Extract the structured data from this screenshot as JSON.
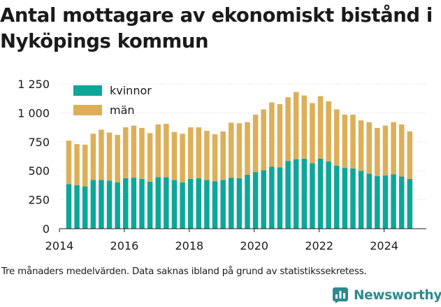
{
  "title": "Antal mottagare av ekonomiskt bistånd i Nyköpings kommun",
  "caption": "Tre månaders medelvärden. Data saknas ibland på grund av statistikssekretess.",
  "brand": {
    "name": "Newsworthy",
    "icon": "bar-chart-logo-icon",
    "color": "#2b8a8e"
  },
  "colors": {
    "kvinnor": "#0ca79a",
    "man": "#dcaf58",
    "axis": "#1a1a1a",
    "grid": "#d4d4d4"
  },
  "chart_data": {
    "type": "bar",
    "stacked": true,
    "title": "Antal mottagare av ekonomiskt bistånd i Nyköpings kommun",
    "xlabel": "",
    "ylabel": "",
    "ylim": [
      0,
      1250
    ],
    "yticks": [
      0,
      250,
      500,
      750,
      1000,
      1250
    ],
    "ytick_labels": [
      "0",
      "250",
      "500",
      "750",
      "1 000",
      "1 250"
    ],
    "xlim": [
      2014.0,
      2025.3
    ],
    "xticks": [
      2014,
      2016,
      2018,
      2020,
      2022,
      2024
    ],
    "xtick_labels": [
      "2014",
      "2016",
      "2018",
      "2020",
      "2022",
      "2024"
    ],
    "grid": true,
    "legend": "top-left",
    "x": [
      2014.29,
      2014.54,
      2014.79,
      2015.04,
      2015.29,
      2015.54,
      2015.79,
      2016.04,
      2016.29,
      2016.54,
      2016.79,
      2017.04,
      2017.29,
      2017.54,
      2017.79,
      2018.04,
      2018.29,
      2018.54,
      2018.79,
      2019.04,
      2019.29,
      2019.54,
      2019.79,
      2020.04,
      2020.29,
      2020.54,
      2020.79,
      2021.04,
      2021.29,
      2021.54,
      2021.79,
      2022.04,
      2022.29,
      2022.54,
      2022.79,
      2023.04,
      2023.29,
      2023.54,
      2023.79,
      2024.04,
      2024.29,
      2024.54,
      2024.79
    ],
    "series": [
      {
        "name": "kvinnor",
        "color": "#0ca79a",
        "values": [
          385,
          375,
          365,
          420,
          420,
          415,
          400,
          435,
          440,
          430,
          405,
          445,
          445,
          420,
          400,
          430,
          435,
          420,
          410,
          420,
          440,
          435,
          465,
          490,
          505,
          535,
          530,
          585,
          600,
          605,
          565,
          605,
          580,
          545,
          525,
          520,
          500,
          475,
          455,
          460,
          470,
          450,
          430
        ]
      },
      {
        "name": "män",
        "color": "#dcaf58",
        "values": [
          375,
          355,
          360,
          400,
          435,
          415,
          410,
          440,
          450,
          440,
          420,
          455,
          460,
          415,
          420,
          445,
          440,
          425,
          405,
          420,
          475,
          475,
          455,
          495,
          525,
          555,
          545,
          550,
          580,
          545,
          520,
          540,
          520,
          485,
          460,
          465,
          435,
          445,
          415,
          430,
          450,
          450,
          410
        ]
      }
    ]
  }
}
